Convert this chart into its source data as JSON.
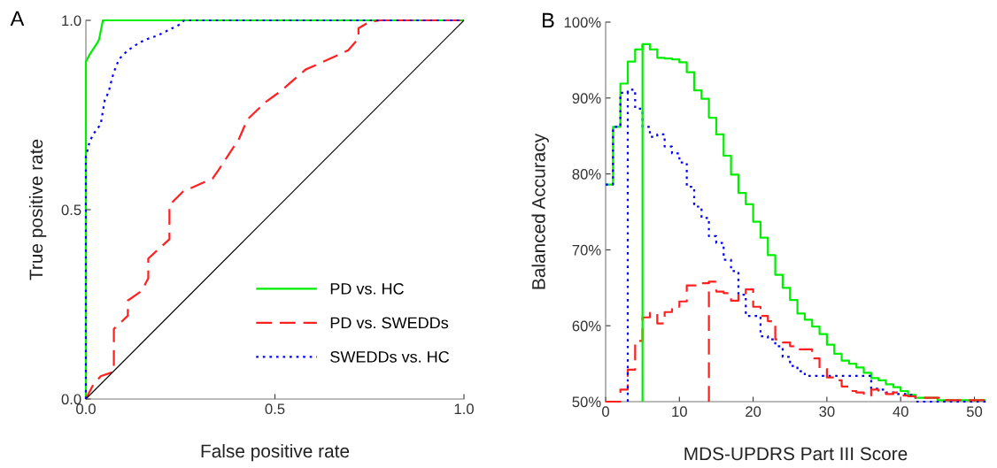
{
  "chart_data": [
    {
      "type": "line",
      "title": "A",
      "xlabel": "False positive rate",
      "ylabel": "True positive rate",
      "xlim": [
        0,
        1
      ],
      "ylim": [
        0,
        1
      ],
      "xticks": [
        {
          "value": 0,
          "label": "0.0"
        },
        {
          "value": 0.5,
          "label": "0.5"
        },
        {
          "value": 1,
          "label": "1.0"
        }
      ],
      "yticks": [
        {
          "value": 0,
          "label": "0.0"
        },
        {
          "value": 0.5,
          "label": "0.5"
        },
        {
          "value": 1,
          "label": "1.0"
        }
      ],
      "grid": false,
      "legend": "bottom right",
      "series": [
        {
          "name": "PD vs. HC",
          "color": "#00ee00",
          "line_style": "solid",
          "x": [
            0,
            0,
            0.01,
            0.03,
            0.035,
            0.045,
            0.06,
            1
          ],
          "values": [
            0,
            0.89,
            0.91,
            0.94,
            0.95,
            1.0,
            1.0,
            1.0
          ]
        },
        {
          "name": "PD vs. SWEDDs",
          "color": "#ff2020",
          "line_style": "dashed",
          "x": [
            0,
            0.019,
            0.039,
            0.074,
            0.074,
            0.09,
            0.111,
            0.111,
            0.148,
            0.165,
            0.165,
            0.221,
            0.221,
            0.257,
            0.335,
            0.351,
            0.405,
            0.427,
            0.475,
            0.514,
            0.581,
            0.624,
            0.694,
            0.721,
            0.721,
            0.748,
            0.776,
            1
          ],
          "values": [
            0,
            0.037,
            0.06,
            0.072,
            0.185,
            0.2,
            0.22,
            0.26,
            0.286,
            0.319,
            0.371,
            0.422,
            0.512,
            0.548,
            0.582,
            0.605,
            0.687,
            0.738,
            0.784,
            0.812,
            0.87,
            0.889,
            0.921,
            0.952,
            0.979,
            0.995,
            1.0,
            1.0
          ]
        },
        {
          "name": "SWEDDs vs. HC",
          "color": "#0000ff",
          "line_style": "dotted",
          "x": [
            0,
            0,
            0.01,
            0.02,
            0.035,
            0.04,
            0.045,
            0.05,
            0.06,
            0.07,
            0.08,
            0.09,
            0.11,
            0.14,
            0.16,
            0.19,
            0.25,
            0.26,
            1
          ],
          "values": [
            0,
            0.64,
            0.68,
            0.7,
            0.72,
            0.73,
            0.76,
            0.79,
            0.81,
            0.85,
            0.88,
            0.9,
            0.92,
            0.94,
            0.95,
            0.96,
            0.99,
            1.0,
            1.0
          ]
        },
        {
          "color": "#000000",
          "line_style": "solid",
          "x": [
            0,
            1
          ],
          "values": [
            0,
            1
          ]
        }
      ]
    },
    {
      "type": "step",
      "title": "B",
      "xlabel": "MDS-UPDRS Part III Score",
      "ylabel": "Balanced Accuracy",
      "xlim": [
        0,
        51.5
      ],
      "ylim": [
        50,
        100
      ],
      "xticks": [
        0,
        10,
        20,
        30,
        40,
        50
      ],
      "yticks": [
        {
          "value": 50,
          "label": "50%"
        },
        {
          "value": 60,
          "label": "60%"
        },
        {
          "value": 70,
          "label": "70%"
        },
        {
          "value": 80,
          "label": "80%"
        },
        {
          "value": 90,
          "label": "90%"
        },
        {
          "value": 100,
          "label": "100%"
        }
      ],
      "grid": false,
      "x": [
        0,
        1,
        2,
        3,
        4,
        5,
        6,
        7,
        8,
        9,
        10,
        11,
        12,
        13,
        14,
        15,
        16,
        17,
        18,
        19,
        20,
        21,
        22,
        23,
        24,
        25,
        26,
        27,
        28,
        29,
        30,
        31,
        32,
        33,
        34,
        35,
        36,
        37,
        38,
        39,
        40,
        41,
        42,
        43,
        44,
        45,
        46,
        47,
        48,
        49,
        50,
        51.5
      ],
      "series": [
        {
          "color": "#00ee00",
          "line_style": "solid",
          "values": [
            78.6,
            86.2,
            91.9,
            94.8,
            96.4,
            97.1,
            96.4,
            95.3,
            95.2,
            95.1,
            94.7,
            93.4,
            91.0,
            89.9,
            87.4,
            85.2,
            82.4,
            79.9,
            77.5,
            76.0,
            73.7,
            71.6,
            69.3,
            66.7,
            65.0,
            63.4,
            61.6,
            60.8,
            59.9,
            58.9,
            57.5,
            56.3,
            55.4,
            55.0,
            54.5,
            53.8,
            53.1,
            52.8,
            52.3,
            51.9,
            51.4,
            50.9,
            50.5,
            50.5,
            50.5,
            50.2,
            50.2,
            50.2,
            50.2,
            50.2,
            50.2,
            50.2
          ]
        },
        {
          "color": "#0000ff",
          "line_style": "dotted",
          "values": [
            78.6,
            86.2,
            90.7,
            91.1,
            88.6,
            86.2,
            84.9,
            85.2,
            83.6,
            82.7,
            81.5,
            78.3,
            75.7,
            74.2,
            71.8,
            70.9,
            68.7,
            67.2,
            64.1,
            61.3,
            61.3,
            58.6,
            58.2,
            57.3,
            55.9,
            54.7,
            54.0,
            53.4,
            53.4,
            53.4,
            53.4,
            53.4,
            53.4,
            53.4,
            53.4,
            53.4,
            51.7,
            51.6,
            51.2,
            51.0,
            51.0,
            50.9,
            50.0,
            50.0,
            50.0,
            50.0,
            50.0,
            50.0,
            50.0,
            50.0,
            50.0,
            50.0
          ]
        },
        {
          "color": "#ff2020",
          "line_style": "dashed",
          "values": [
            50.0,
            50.0,
            51.6,
            54.2,
            58.0,
            61.1,
            61.7,
            60.3,
            61.8,
            62.5,
            63.2,
            65.3,
            65.3,
            65.6,
            65.8,
            64.5,
            64.3,
            63.3,
            64.1,
            64.8,
            62.5,
            61.3,
            60.6,
            58.2,
            57.8,
            57.3,
            56.9,
            56.9,
            55.7,
            54.3,
            53.2,
            52.8,
            52.0,
            51.4,
            51.2,
            50.8,
            51.6,
            51.4,
            51.0,
            51.2,
            50.8,
            50.7,
            50.5,
            50.5,
            50.5,
            50.5,
            50.2,
            50.2,
            50.2,
            50.2,
            50.2,
            50.2
          ]
        },
        {
          "type": "line",
          "color": "#00ee00",
          "line_style": "solid",
          "x": [
            5,
            5
          ],
          "values": [
            50,
            97.1
          ]
        },
        {
          "type": "line",
          "color": "#0000ff",
          "line_style": "dotted",
          "x": [
            3,
            3
          ],
          "values": [
            50,
            91.1
          ]
        },
        {
          "type": "line",
          "color": "#ff2020",
          "line_style": "dashed",
          "x": [
            14,
            14
          ],
          "values": [
            50,
            65.8
          ]
        }
      ]
    }
  ]
}
